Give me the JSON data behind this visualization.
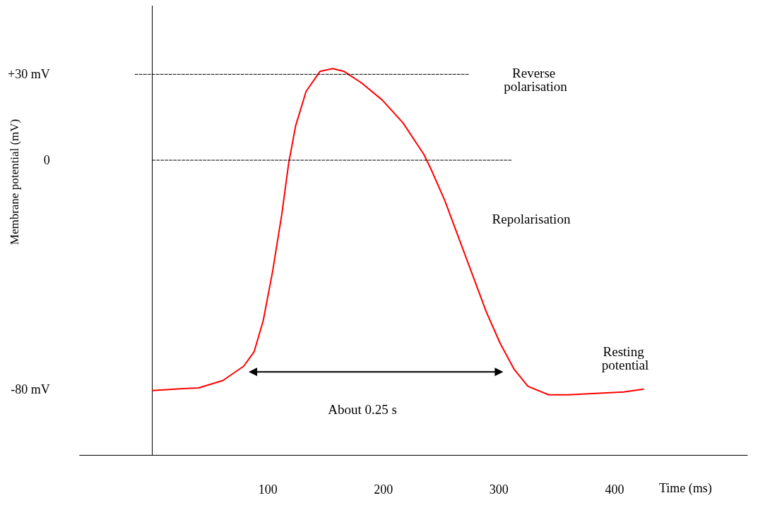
{
  "chart_data": {
    "type": "line",
    "xlabel": "Time (ms)",
    "ylabel": "Membrane potential (mV)",
    "xlim": [
      -63,
      515
    ],
    "ylim": [
      -103,
      54
    ],
    "xticks": [
      100,
      200,
      300,
      400
    ],
    "yticks": [
      {
        "value": 30,
        "label": "+30 mV"
      },
      {
        "value": 0,
        "label": "0"
      },
      {
        "value": -80,
        "label": "-80 mV"
      }
    ],
    "grid": false,
    "series": [
      {
        "color": "#ff0000",
        "marker": "none",
        "line_style": "solid",
        "x": [
          0,
          19,
          40,
          61,
          79,
          88,
          96,
          104,
          112,
          118,
          124,
          133,
          145,
          156,
          166,
          181,
          199,
          217,
          235,
          241,
          253,
          265,
          277,
          289,
          301,
          313,
          325,
          343,
          360,
          384,
          408,
          425
        ],
        "values": [
          -80.5,
          -80,
          -79.6,
          -77,
          -72,
          -67,
          -56,
          -39,
          -19,
          -1,
          12,
          24,
          31,
          32,
          31,
          27,
          21,
          13,
          2,
          -3,
          -14,
          -27,
          -40,
          -53,
          -64,
          -73,
          -79,
          -82,
          -82,
          -81.5,
          -81,
          -80
        ]
      },
      {
        "color": "#000000",
        "marker": "none",
        "line_style": "dashed",
        "x": [
          -15,
          274
        ],
        "values": [
          30,
          30
        ]
      },
      {
        "color": "#000000",
        "marker": "none",
        "line_style": "dashed",
        "x": [
          0,
          311
        ],
        "values": [
          0,
          0
        ]
      },
      {
        "color": "#000000",
        "marker": "triangle",
        "line_style": "solid",
        "x": [
          87,
          300
        ],
        "values": [
          -74,
          -74
        ]
      }
    ],
    "annotations": [
      "Reverse polarisation",
      "Repolarisation",
      "Resting potential",
      "About 0.25 s"
    ]
  }
}
